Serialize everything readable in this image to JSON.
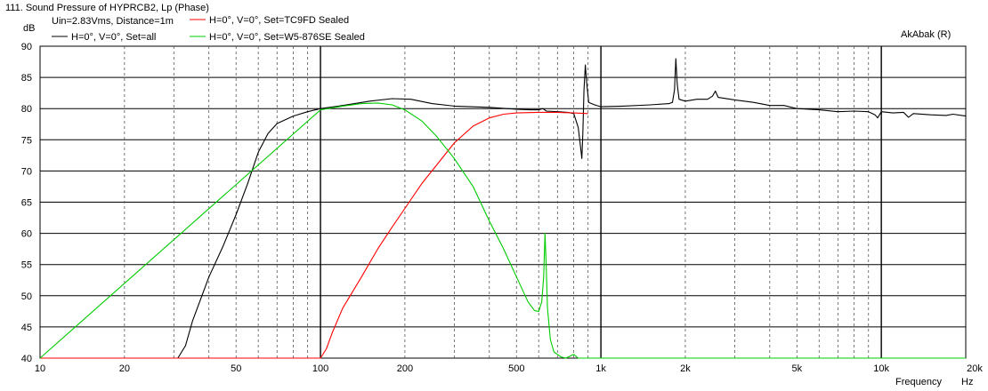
{
  "chart_data": {
    "type": "line",
    "title": "111. Sound Pressure of HYPRCB2, Lp (Phase)",
    "conditions": "Uin=2.83Vms, Distance=1m",
    "watermark": "AkAbak (R)",
    "ylabel": "dB",
    "xlabel": "Frequency",
    "xunit": "Hz",
    "x_scale": "log",
    "xlim": [
      10,
      20000
    ],
    "ylim": [
      40,
      90
    ],
    "grid": true,
    "legend_position": "top-left",
    "y_ticks": [
      40,
      45,
      50,
      55,
      60,
      65,
      70,
      75,
      80,
      85,
      90
    ],
    "y_tick_labels": [
      "40",
      "45",
      "50",
      "55",
      "60",
      "65",
      "70",
      "75",
      "80",
      "85",
      "90"
    ],
    "x_ticks": [
      10,
      20,
      50,
      100,
      200,
      500,
      1000,
      2000,
      5000,
      10000,
      20000
    ],
    "x_tick_labels": [
      "10",
      "20",
      "50",
      "100",
      "200",
      "500",
      "1k",
      "2k",
      "5k",
      "10k",
      "20k"
    ],
    "series": [
      {
        "name": "H=0°, V=0°, Set=all",
        "color": "#000000",
        "points": [
          [
            10,
            40
          ],
          [
            31,
            40
          ],
          [
            33,
            42
          ],
          [
            35,
            46
          ],
          [
            40,
            53
          ],
          [
            45,
            58
          ],
          [
            50,
            63
          ],
          [
            55,
            68
          ],
          [
            60,
            73
          ],
          [
            65,
            76
          ],
          [
            70,
            77.6
          ],
          [
            80,
            78.8
          ],
          [
            90,
            79.5
          ],
          [
            100,
            80
          ],
          [
            120,
            80.5
          ],
          [
            150,
            81.2
          ],
          [
            180,
            81.6
          ],
          [
            210,
            81.5
          ],
          [
            250,
            80.8
          ],
          [
            300,
            80.4
          ],
          [
            400,
            80.2
          ],
          [
            500,
            79.9
          ],
          [
            560,
            79.8
          ],
          [
            600,
            79.8
          ],
          [
            620,
            80
          ],
          [
            640,
            79.6
          ],
          [
            700,
            79.5
          ],
          [
            760,
            79.4
          ],
          [
            800,
            79.2
          ],
          [
            830,
            77
          ],
          [
            845,
            74
          ],
          [
            855,
            72
          ],
          [
            862,
            76
          ],
          [
            870,
            83
          ],
          [
            880,
            87
          ],
          [
            890,
            84
          ],
          [
            905,
            81
          ],
          [
            950,
            80.6
          ],
          [
            1000,
            80.3
          ],
          [
            1200,
            80.4
          ],
          [
            1500,
            80.6
          ],
          [
            1750,
            80.8
          ],
          [
            1800,
            81
          ],
          [
            1830,
            83
          ],
          [
            1850,
            88
          ],
          [
            1870,
            84
          ],
          [
            1900,
            81.5
          ],
          [
            2000,
            81.2
          ],
          [
            2200,
            81.5
          ],
          [
            2400,
            81.5
          ],
          [
            2500,
            82
          ],
          [
            2560,
            82.8
          ],
          [
            2620,
            81.8
          ],
          [
            3000,
            81.4
          ],
          [
            3500,
            81
          ],
          [
            4000,
            80.5
          ],
          [
            4500,
            80.5
          ],
          [
            5000,
            80
          ],
          [
            6000,
            79.8
          ],
          [
            7000,
            79.5
          ],
          [
            8000,
            79.6
          ],
          [
            9000,
            79.5
          ],
          [
            9500,
            79
          ],
          [
            9700,
            78.5
          ],
          [
            10000,
            79.5
          ],
          [
            11000,
            79.3
          ],
          [
            12000,
            79.4
          ],
          [
            12500,
            78.6
          ],
          [
            13000,
            79.2
          ],
          [
            15000,
            79
          ],
          [
            17000,
            78.9
          ],
          [
            18000,
            79.1
          ],
          [
            20000,
            78.8
          ]
        ]
      },
      {
        "name": "H=0°, V=0°, Set=TC9FD Sealed",
        "color": "#ff0000",
        "points": [
          [
            10,
            40
          ],
          [
            100,
            40
          ],
          [
            105,
            41.5
          ],
          [
            110,
            44
          ],
          [
            120,
            48
          ],
          [
            140,
            53
          ],
          [
            160,
            57.5
          ],
          [
            180,
            61
          ],
          [
            200,
            64
          ],
          [
            230,
            68
          ],
          [
            260,
            71
          ],
          [
            300,
            74.5
          ],
          [
            350,
            77.2
          ],
          [
            400,
            78.5
          ],
          [
            450,
            79.1
          ],
          [
            500,
            79.3
          ],
          [
            600,
            79.4
          ],
          [
            700,
            79.4
          ],
          [
            800,
            79.3
          ],
          [
            900,
            79.2
          ]
        ]
      },
      {
        "name": "H=0°, V=0°, Set=W5-876SE Sealed",
        "color": "#00cc00",
        "points": [
          [
            10,
            40
          ],
          [
            100,
            79.8
          ],
          [
            120,
            80.4
          ],
          [
            140,
            80.8
          ],
          [
            160,
            80.9
          ],
          [
            180,
            80.6
          ],
          [
            200,
            79.8
          ],
          [
            230,
            78
          ],
          [
            260,
            75.5
          ],
          [
            300,
            72
          ],
          [
            350,
            67.5
          ],
          [
            400,
            62
          ],
          [
            450,
            57.5
          ],
          [
            500,
            53
          ],
          [
            550,
            49
          ],
          [
            580,
            47.6
          ],
          [
            600,
            47.5
          ],
          [
            615,
            49
          ],
          [
            625,
            53
          ],
          [
            632,
            60
          ],
          [
            638,
            55
          ],
          [
            645,
            48
          ],
          [
            660,
            43
          ],
          [
            680,
            41
          ],
          [
            700,
            40.6
          ],
          [
            720,
            40.2
          ],
          [
            750,
            40
          ],
          [
            800,
            40.6
          ],
          [
            830,
            40
          ],
          [
            1000,
            40
          ],
          [
            20000,
            40
          ]
        ]
      }
    ]
  }
}
